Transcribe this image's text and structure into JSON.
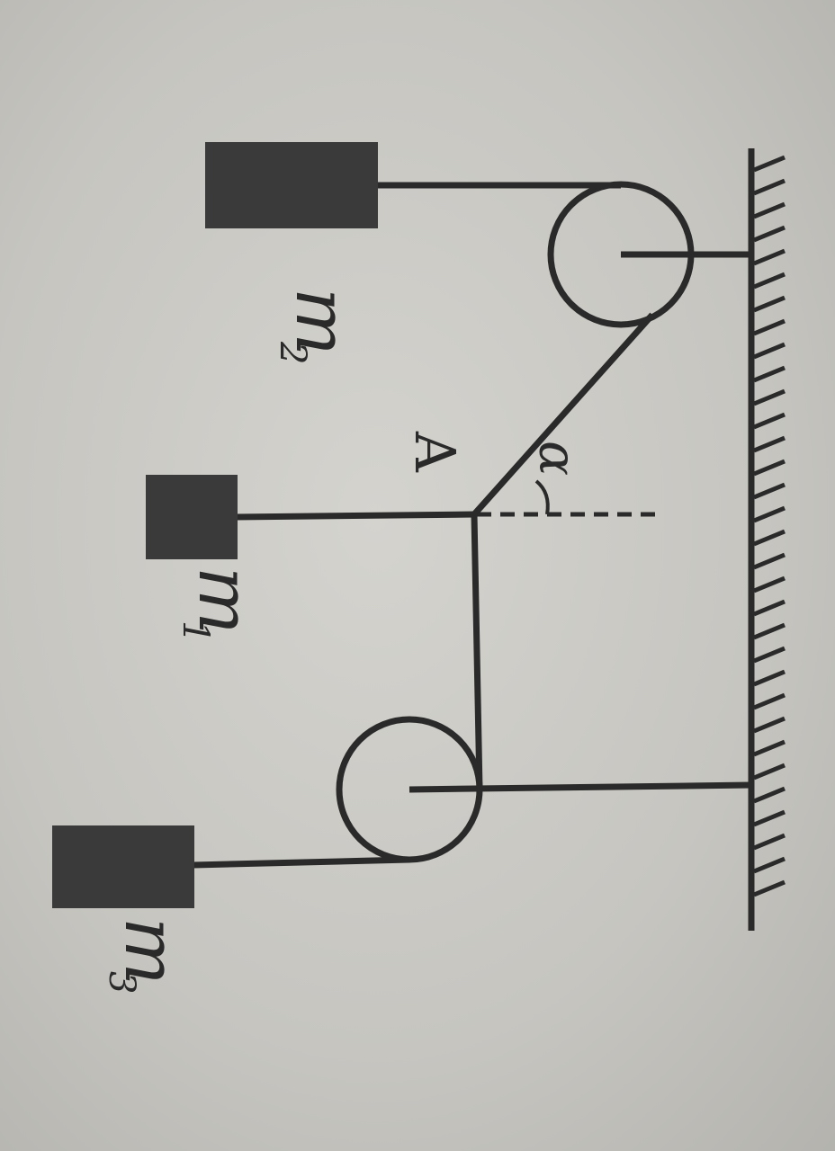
{
  "labels": {
    "mass2": "m",
    "mass2_sub": "2",
    "mass1": "m",
    "mass1_sub": "1",
    "mass3": "m",
    "mass3_sub": "3",
    "point": "A",
    "angle": "α"
  },
  "colors": {
    "ink": "#2a2a2a",
    "block": "#3a3a3a",
    "paper": "#c9c8c3"
  }
}
